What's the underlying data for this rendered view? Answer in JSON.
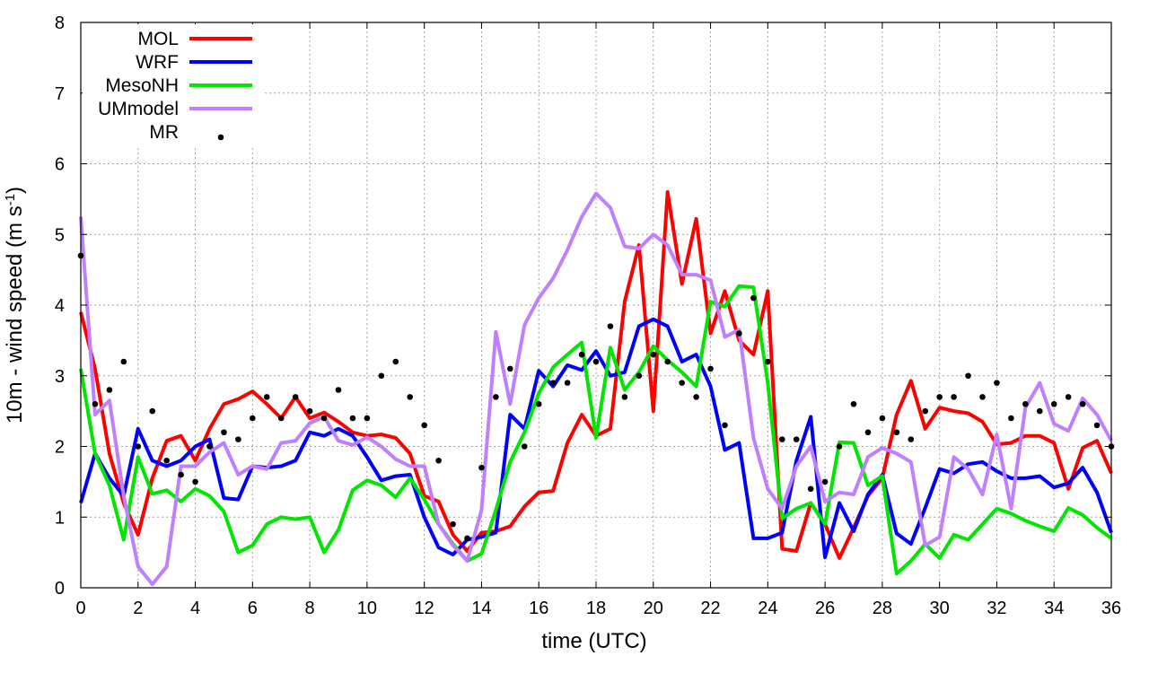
{
  "chart_data": {
    "type": "line",
    "title": "",
    "xlabel": "time (UTC)",
    "ylabel_main": "10m - wind speed  (m s",
    "ylabel_sup": "-1",
    "ylabel_end": ")",
    "xlim": [
      0,
      36
    ],
    "ylim": [
      0,
      8
    ],
    "xticks": [
      "0",
      "2",
      "4",
      "6",
      "8",
      "10",
      "12",
      "14",
      "16",
      "18",
      "20",
      "22",
      "24",
      "26",
      "28",
      "30",
      "32",
      "34",
      "36"
    ],
    "yticks": [
      "0",
      "1",
      "2",
      "3",
      "4",
      "5",
      "6",
      "7",
      "8"
    ],
    "grid": true,
    "legend_position": "top-left",
    "series": [
      {
        "name": "MOL",
        "color": "#ff0000",
        "x": [
          0,
          0.5,
          1,
          1.5,
          2,
          2.5,
          3,
          3.5,
          4,
          4.5,
          5,
          5.5,
          6,
          6.5,
          7,
          7.5,
          8,
          8.5,
          9,
          9.5,
          10,
          10.5,
          11,
          11.5,
          12,
          12.5,
          13,
          13.5,
          14,
          14.5,
          15,
          15.5,
          16,
          16.5,
          17,
          17.5,
          18,
          18.5,
          19,
          19.5,
          20,
          20.5,
          21,
          21.5,
          22,
          22.5,
          23,
          23.5,
          24,
          24.5,
          25,
          25.5,
          26,
          26.5,
          27,
          27.5,
          28,
          28.5,
          29,
          29.5,
          30,
          30.5,
          31,
          31.5,
          32,
          32.5,
          33,
          33.5,
          34,
          34.5,
          35,
          35.5,
          36
        ],
        "y": [
          3.9,
          3.1,
          1.9,
          1.2,
          0.75,
          1.55,
          2.08,
          2.15,
          1.8,
          2.25,
          2.6,
          2.67,
          2.78,
          2.6,
          2.4,
          2.7,
          2.4,
          2.48,
          2.35,
          2.2,
          2.15,
          2.17,
          2.12,
          1.9,
          1.3,
          1.22,
          0.75,
          0.52,
          0.78,
          0.8,
          0.87,
          1.15,
          1.35,
          1.37,
          2.05,
          2.45,
          2.15,
          2.25,
          4.05,
          4.85,
          2.5,
          5.6,
          4.3,
          5.22,
          3.6,
          4.2,
          3.5,
          3.3,
          4.2,
          0.55,
          0.52,
          1.2,
          0.9,
          0.42,
          0.85,
          1.3,
          1.55,
          2.45,
          2.93,
          2.25,
          2.55,
          2.5,
          2.47,
          2.35,
          2.03,
          2.05,
          2.15,
          2.15,
          2.05,
          1.4,
          1.98,
          2.08,
          1.62
        ]
      },
      {
        "name": "WRF",
        "color": "#0000ff",
        "x": [
          0,
          0.5,
          1,
          1.5,
          2,
          2.5,
          3,
          3.5,
          4,
          4.5,
          5,
          5.5,
          6,
          6.5,
          7,
          7.5,
          8,
          8.5,
          9,
          9.5,
          10,
          10.5,
          11,
          11.5,
          12,
          12.5,
          13,
          13.5,
          14,
          14.5,
          15,
          15.5,
          16,
          16.5,
          17,
          17.5,
          18,
          18.5,
          19,
          19.5,
          20,
          20.5,
          21,
          21.5,
          22,
          22.5,
          23,
          23.5,
          24,
          24.5,
          25,
          25.5,
          26,
          26.5,
          27,
          27.5,
          28,
          28.5,
          29,
          29.5,
          30,
          30.5,
          31,
          31.5,
          32,
          32.5,
          33,
          33.5,
          34,
          34.5,
          35,
          35.5,
          36
        ],
        "y": [
          1.2,
          1.9,
          1.55,
          1.3,
          2.25,
          1.8,
          1.72,
          1.8,
          2.0,
          2.1,
          1.27,
          1.25,
          1.72,
          1.7,
          1.72,
          1.8,
          2.2,
          2.15,
          2.25,
          2.15,
          1.85,
          1.52,
          1.58,
          1.6,
          1.0,
          0.57,
          0.47,
          0.68,
          0.72,
          0.78,
          2.45,
          2.25,
          3.07,
          2.85,
          3.15,
          3.08,
          3.35,
          3.0,
          3.05,
          3.7,
          3.8,
          3.7,
          3.2,
          3.3,
          2.85,
          1.95,
          2.05,
          0.7,
          0.7,
          0.78,
          1.8,
          2.42,
          0.43,
          1.2,
          0.8,
          1.32,
          1.6,
          0.77,
          0.62,
          1.13,
          1.68,
          1.62,
          1.75,
          1.78,
          1.65,
          1.55,
          1.55,
          1.58,
          1.42,
          1.48,
          1.7,
          1.35,
          0.78
        ]
      },
      {
        "name": "MesoNH",
        "color": "#00e600",
        "x": [
          0,
          0.5,
          1,
          1.5,
          2,
          2.5,
          3,
          3.5,
          4,
          4.5,
          5,
          5.5,
          6,
          6.5,
          7,
          7.5,
          8,
          8.5,
          9,
          9.5,
          10,
          10.5,
          11,
          11.5,
          12,
          12.5,
          13,
          13.5,
          14,
          14.5,
          15,
          15.5,
          16,
          16.5,
          17,
          17.5,
          18,
          18.5,
          19,
          19.5,
          20,
          20.5,
          21,
          21.5,
          22,
          22.5,
          23,
          23.5,
          24,
          24.5,
          25,
          25.5,
          26,
          26.5,
          27,
          27.5,
          28,
          28.5,
          29,
          29.5,
          30,
          30.5,
          31,
          31.5,
          32,
          32.5,
          33,
          33.5,
          34,
          34.5,
          35,
          35.5,
          36
        ],
        "y": [
          3.1,
          1.9,
          1.45,
          0.68,
          1.85,
          1.33,
          1.38,
          1.22,
          1.4,
          1.3,
          1.08,
          0.5,
          0.6,
          0.9,
          1.0,
          0.97,
          1.0,
          0.5,
          0.82,
          1.38,
          1.52,
          1.45,
          1.28,
          1.55,
          1.25,
          0.9,
          0.62,
          0.38,
          0.48,
          1.1,
          1.78,
          2.2,
          2.75,
          3.12,
          3.3,
          3.47,
          2.12,
          3.4,
          2.8,
          3.05,
          3.42,
          3.22,
          3.05,
          2.85,
          4.05,
          3.98,
          4.27,
          4.25,
          2.9,
          0.98,
          1.12,
          1.2,
          0.9,
          2.06,
          2.05,
          1.45,
          1.58,
          0.2,
          0.38,
          0.62,
          0.42,
          0.75,
          0.68,
          0.9,
          1.12,
          1.05,
          0.95,
          0.87,
          0.8,
          1.13,
          1.03,
          0.85,
          0.7
        ]
      },
      {
        "name": "UMmodel",
        "color": "#bf80ff",
        "x": [
          0,
          0.5,
          1,
          1.5,
          2,
          2.5,
          3,
          3.5,
          4,
          4.5,
          5,
          5.5,
          6,
          6.5,
          7,
          7.5,
          8,
          8.5,
          9,
          9.5,
          10,
          10.5,
          11,
          11.5,
          12,
          12.5,
          13,
          13.5,
          14,
          14.5,
          15,
          15.5,
          16,
          16.5,
          17,
          17.5,
          18,
          18.5,
          19,
          19.5,
          20,
          20.5,
          21,
          21.5,
          22,
          22.5,
          23,
          23.5,
          24,
          24.5,
          25,
          25.5,
          26,
          26.5,
          27,
          27.5,
          28,
          28.5,
          29,
          29.5,
          30,
          30.5,
          31,
          31.5,
          32,
          32.5,
          33,
          33.5,
          34,
          34.5,
          35,
          35.5,
          36
        ],
        "y": [
          5.25,
          2.45,
          2.65,
          1.3,
          0.3,
          0.05,
          0.3,
          1.72,
          1.72,
          1.92,
          2.05,
          1.6,
          1.72,
          1.68,
          2.05,
          2.08,
          2.33,
          2.42,
          2.08,
          2.02,
          2.13,
          2.0,
          1.82,
          1.72,
          1.72,
          0.9,
          0.6,
          0.38,
          1.1,
          3.62,
          2.6,
          3.72,
          4.1,
          4.38,
          4.78,
          5.25,
          5.58,
          5.38,
          4.83,
          4.8,
          5.0,
          4.85,
          4.43,
          4.43,
          4.35,
          3.55,
          3.65,
          2.12,
          1.4,
          1.12,
          1.72,
          2.0,
          1.22,
          1.35,
          1.32,
          1.85,
          1.98,
          1.9,
          1.78,
          0.6,
          0.72,
          1.85,
          1.68,
          1.32,
          2.17,
          1.12,
          2.55,
          2.9,
          2.32,
          2.22,
          2.68,
          2.45,
          2.08
        ]
      },
      {
        "name": "MR",
        "color": "#000000",
        "style": "points",
        "x": [
          0,
          0.5,
          1,
          1.5,
          2,
          2.5,
          3,
          3.5,
          4,
          4.5,
          5,
          5.5,
          6,
          6.5,
          7,
          7.5,
          8,
          8.5,
          9,
          9.5,
          10,
          10.5,
          11,
          11.5,
          12,
          12.5,
          13,
          13.5,
          14,
          14.5,
          15,
          15.5,
          16,
          16.5,
          17,
          17.5,
          18,
          18.5,
          19,
          19.5,
          20,
          20.5,
          21,
          21.5,
          22,
          22.5,
          23,
          23.5,
          24,
          24.5,
          25,
          25.5,
          26,
          26.5,
          27,
          27.5,
          28,
          28.5,
          29,
          29.5,
          30,
          30.5,
          31,
          31.5,
          32,
          32.5,
          33,
          33.5,
          34,
          34.5,
          35,
          35.5,
          36
        ],
        "y": [
          4.7,
          2.6,
          2.8,
          3.2,
          2.0,
          2.5,
          1.8,
          1.6,
          1.5,
          2.0,
          2.2,
          2.1,
          2.4,
          2.7,
          2.4,
          2.7,
          2.5,
          2.4,
          2.8,
          2.4,
          2.4,
          3.0,
          3.2,
          2.7,
          2.3,
          1.8,
          0.9,
          0.7,
          1.7,
          2.7,
          3.1,
          2.0,
          2.6,
          2.9,
          2.9,
          3.3,
          3.2,
          3.7,
          2.7,
          3.0,
          3.3,
          3.2,
          2.9,
          2.7,
          3.1,
          2.3,
          3.6,
          4.1,
          3.2,
          2.1,
          2.1,
          1.4,
          1.5,
          2.0,
          2.6,
          2.2,
          2.4,
          2.2,
          2.1,
          2.5,
          2.7,
          2.7,
          3.0,
          2.7,
          2.9,
          2.4,
          2.6,
          2.5,
          2.6,
          2.7,
          2.6,
          2.3,
          2.0
        ]
      }
    ]
  }
}
